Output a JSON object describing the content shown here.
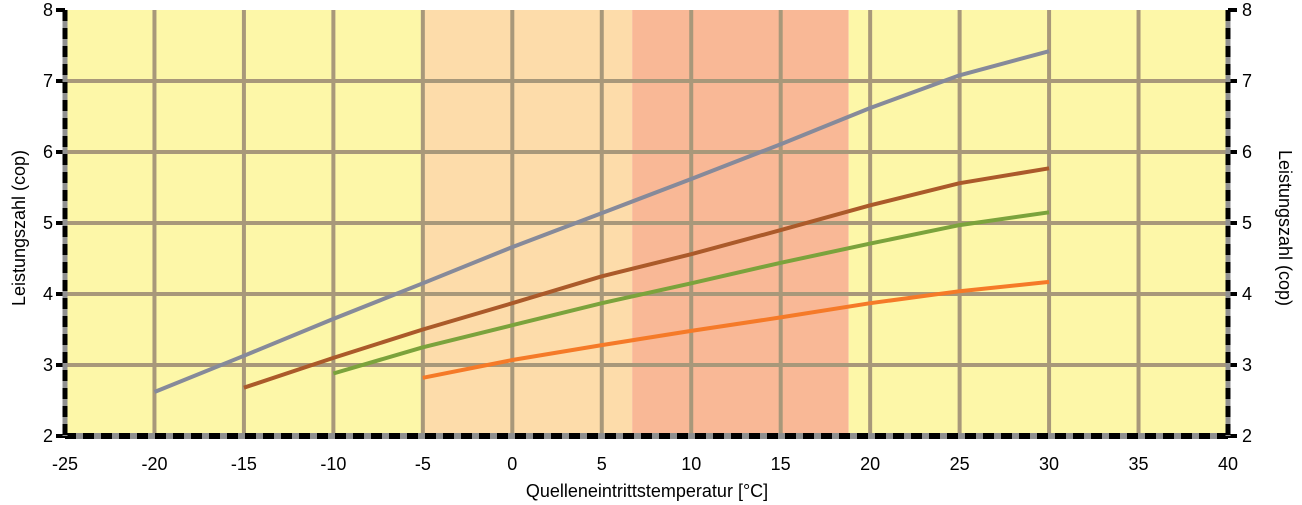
{
  "chart_data": {
    "type": "line",
    "title": "",
    "xlabel": "Quelleneintrittstemperatur [°C]",
    "ylabel_left": "Leistungszahl (cop)",
    "ylabel_right": "Leistungszahl (cop)",
    "xlim": [
      -25,
      40
    ],
    "ylim": [
      2,
      8
    ],
    "x_ticks": [
      "-25",
      "-20",
      "-15",
      "-10",
      "-5",
      "0",
      "5",
      "10",
      "15",
      "20",
      "25",
      "30",
      "35",
      "40"
    ],
    "y_ticks": [
      "2",
      "3",
      "4",
      "5",
      "6",
      "7",
      "8"
    ],
    "grid": true,
    "bands": [
      {
        "x": [
          -25,
          -5
        ],
        "color": "#fdf7a8"
      },
      {
        "x": [
          -5,
          6.7
        ],
        "color": "#fddcaa"
      },
      {
        "x": [
          6.7,
          18.8
        ],
        "color": "#f9b896"
      },
      {
        "x": [
          18.8,
          40
        ],
        "color": "#fdf7a8"
      }
    ],
    "series": [
      {
        "color": "#868a9a",
        "points": [
          [
            -20,
            2.62
          ],
          [
            -15,
            3.13
          ],
          [
            -10,
            3.65
          ],
          [
            -5,
            4.15
          ],
          [
            0,
            4.66
          ],
          [
            5,
            5.14
          ],
          [
            10,
            5.62
          ],
          [
            15,
            6.11
          ],
          [
            20,
            6.62
          ],
          [
            25,
            7.08
          ],
          [
            30,
            7.42
          ]
        ]
      },
      {
        "color": "#ab5a2a",
        "points": [
          [
            -15,
            2.68
          ],
          [
            -10,
            3.1
          ],
          [
            -5,
            3.5
          ],
          [
            0,
            3.87
          ],
          [
            5,
            4.25
          ],
          [
            10,
            4.56
          ],
          [
            15,
            4.9
          ],
          [
            20,
            5.25
          ],
          [
            25,
            5.56
          ],
          [
            30,
            5.77
          ]
        ]
      },
      {
        "color": "#7ba33c",
        "points": [
          [
            -10,
            2.88
          ],
          [
            -5,
            3.25
          ],
          [
            0,
            3.56
          ],
          [
            5,
            3.87
          ],
          [
            10,
            4.15
          ],
          [
            15,
            4.44
          ],
          [
            20,
            4.71
          ],
          [
            25,
            4.97
          ],
          [
            30,
            5.15
          ]
        ]
      },
      {
        "color": "#f57a28",
        "points": [
          [
            -5,
            2.82
          ],
          [
            0,
            3.07
          ],
          [
            5,
            3.28
          ],
          [
            10,
            3.48
          ],
          [
            15,
            3.67
          ],
          [
            20,
            3.87
          ],
          [
            25,
            4.04
          ],
          [
            30,
            4.17
          ]
        ]
      }
    ]
  }
}
